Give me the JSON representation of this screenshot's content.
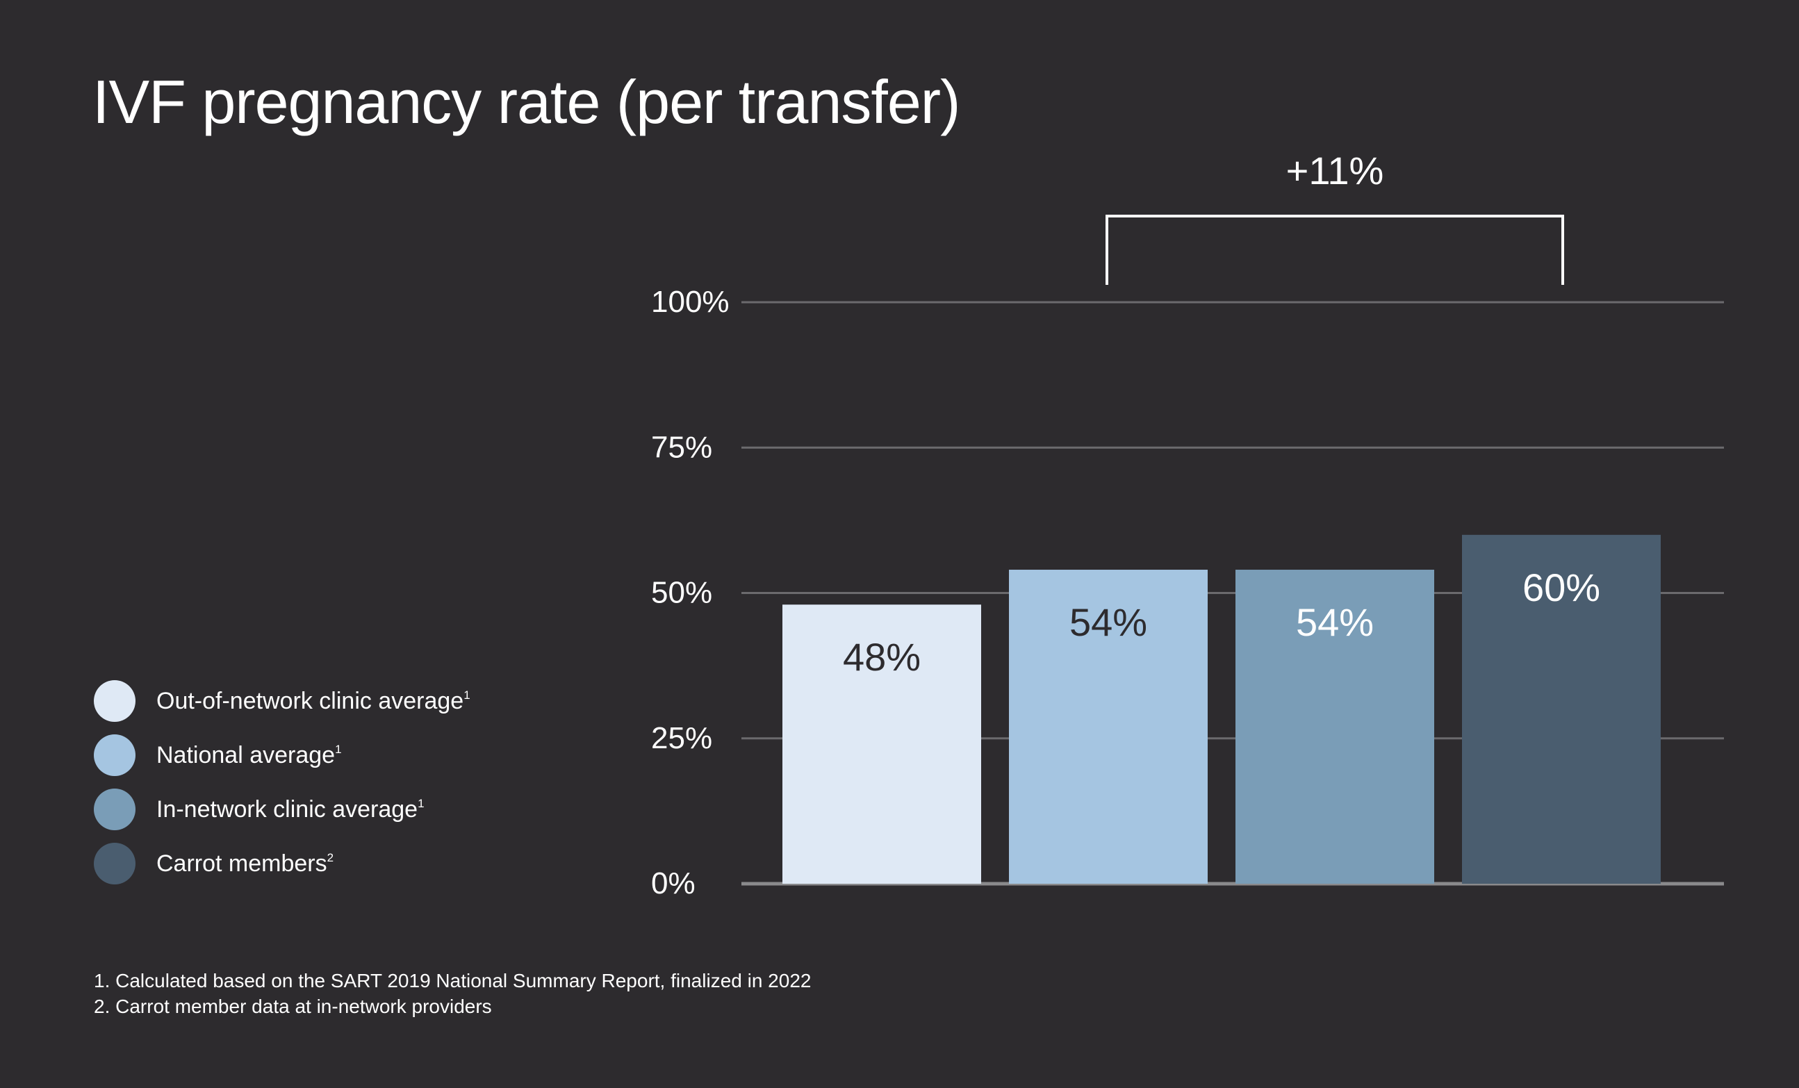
{
  "chart_data": {
    "type": "bar",
    "title": "IVF pregnancy rate (per transfer)",
    "categories": [
      "Out-of-network clinic average",
      "National average",
      "In-network clinic average",
      "Carrot members"
    ],
    "values": [
      48,
      54,
      54,
      60
    ],
    "value_labels": [
      "48%",
      "54%",
      "54%",
      "60%"
    ],
    "colors": [
      "#dfe9f5",
      "#a5c5e1",
      "#7a9db7",
      "#4a5d6f"
    ],
    "value_label_colors": [
      "#2d2b2e",
      "#2d2b2e",
      "#ffffff",
      "#ffffff"
    ],
    "ylim": [
      0,
      100
    ],
    "yticks": [
      0,
      25,
      50,
      75,
      100
    ],
    "ytick_labels": [
      "0%",
      "25%",
      "50%",
      "75%",
      "100%"
    ],
    "grid": true,
    "annotation": {
      "text": "+11%",
      "from_category_index": 1,
      "to_category_index": 3
    },
    "legend": {
      "placement": "left",
      "items": [
        {
          "label": "Out-of-network clinic average",
          "sup": "1",
          "color": "#dfe9f5"
        },
        {
          "label": "National average",
          "sup": "1",
          "color": "#a5c5e1"
        },
        {
          "label": "In-network clinic average",
          "sup": "1",
          "color": "#7a9db7"
        },
        {
          "label": "Carrot members",
          "sup": "2",
          "color": "#4a5d6f"
        }
      ]
    }
  },
  "footnotes": [
    "1. Calculated based on the SART 2019 National Summary Report, finalized in 2022",
    "2. Carrot member data at in-network providers"
  ]
}
